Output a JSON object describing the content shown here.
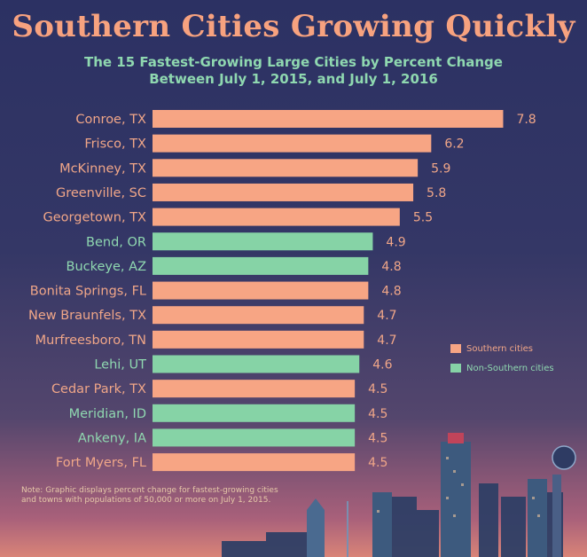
{
  "chart_data": {
    "type": "bar",
    "orientation": "horizontal",
    "title": "Southern Cities Growing Quickly",
    "subtitle_line1": "The 15 Fastest-Growing Large Cities by Percent Change",
    "subtitle_line2": "Between July 1, 2015, and July 1, 2016",
    "categories": [
      "Conroe, TX",
      "Frisco, TX",
      "McKinney, TX",
      "Greenville, SC",
      "Georgetown, TX",
      "Bend, OR",
      "Buckeye, AZ",
      "Bonita Springs, FL",
      "New Braunfels, TX",
      "Murfreesboro, TN",
      "Lehi, UT",
      "Cedar Park, TX",
      "Meridian, ID",
      "Ankeny, IA",
      "Fort Myers, FL"
    ],
    "values": [
      7.8,
      6.2,
      5.9,
      5.8,
      5.5,
      4.9,
      4.8,
      4.8,
      4.7,
      4.7,
      4.6,
      4.5,
      4.5,
      4.5,
      4.5
    ],
    "value_labels": [
      "7.8",
      "6.2",
      "5.9",
      "5.8",
      "5.5",
      "4.9",
      "4.8",
      "4.8",
      "4.7",
      "4.7",
      "4.6",
      "4.5",
      "4.5",
      "4.5",
      "4.5"
    ],
    "groups": [
      "southern",
      "southern",
      "southern",
      "southern",
      "southern",
      "non-southern",
      "non-southern",
      "southern",
      "southern",
      "southern",
      "non-southern",
      "southern",
      "non-southern",
      "non-southern",
      "southern"
    ],
    "legend": [
      {
        "key": "southern",
        "label": "Southern cities",
        "color": "#f7a584"
      },
      {
        "key": "non-southern",
        "label": "Non-Southern cities",
        "color": "#86d3a6"
      }
    ],
    "legend_position": "right",
    "xlim": [
      0,
      8
    ]
  },
  "note": "Note: Graphic displays percent change for fastest-growing cities and towns with populations of 50,000 or more on July 1, 2015.",
  "colors": {
    "title": "#f7a27f",
    "subtitle": "#8fd8b0",
    "label": "#f0a688",
    "background_top": "#2c3163"
  }
}
